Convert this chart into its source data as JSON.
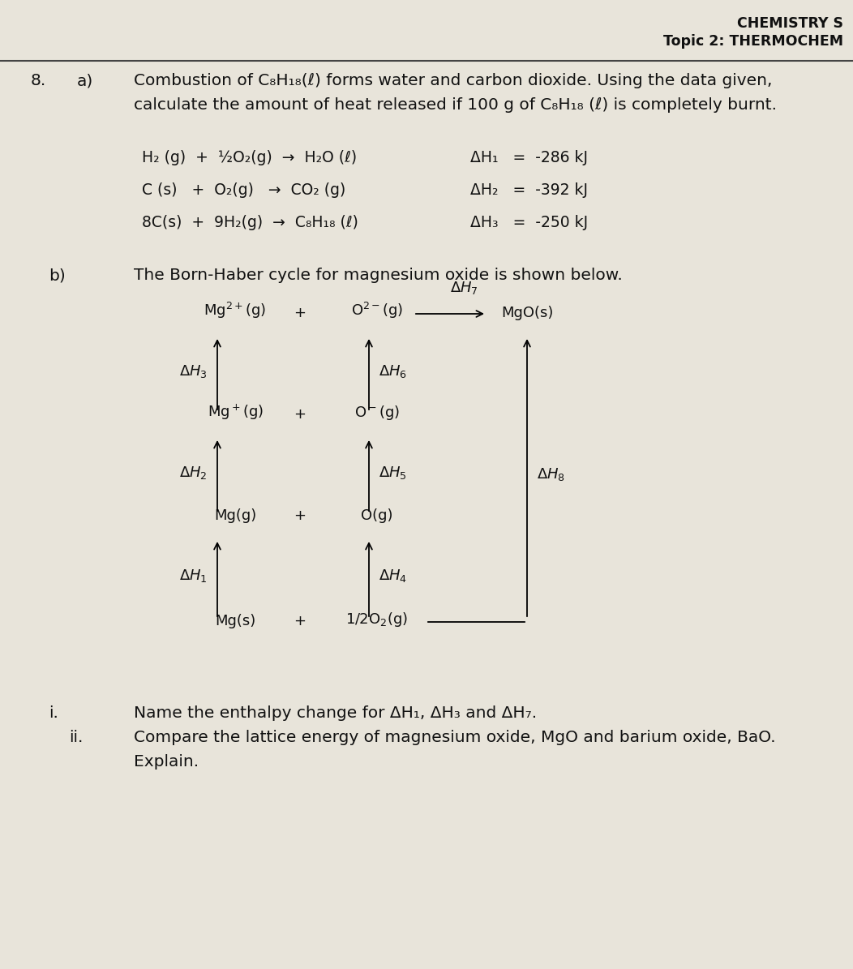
{
  "bg_color": "#e8e4da",
  "text_color": "#111111",
  "header_text1": "CHEMISTRY S",
  "header_text2": "Topic 2: THERMOCHEM",
  "q_number": "8.",
  "q_part_a": "a)",
  "q_part_b": "b)",
  "q_part_i": "i.",
  "q_part_ii": "ii.",
  "text_a_line1": "Combustion of C₈H₁₈(ℓ) forms water and carbon dioxide. Using the data given,",
  "text_a_line2": "calculate the amount of heat released if 100 g of C₈H₁₈ (ℓ) is completely burnt.",
  "eq1_lhs": "H₂ (g)  +  ½O₂(g)  →  H₂O (ℓ)",
  "eq1_rhs": "ΔH₁   =  -286 kJ",
  "eq2_lhs": "C (s)   +  O₂(g)   →  CO₂ (g)",
  "eq2_rhs": "ΔH₂   =  -392 kJ",
  "eq3_lhs": "8C(s)  +  9H₂(g)  →  C₈H₁₈ (ℓ)",
  "eq3_rhs": "ΔH₃   =  -250 kJ",
  "text_b": "The Born-Haber cycle for magnesium oxide is shown below.",
  "text_i": "Name the enthalpy change for ΔH₁, ΔH₃ and ΔH₇.",
  "text_ii_line1": "Compare the lattice energy of magnesium oxide, MgO and barium oxide, BaO.",
  "text_ii_line2": "Explain.",
  "fs_main": 14.5,
  "fs_eq": 13.5,
  "fs_hdr": 12.5,
  "fs_bhc": 13.0
}
